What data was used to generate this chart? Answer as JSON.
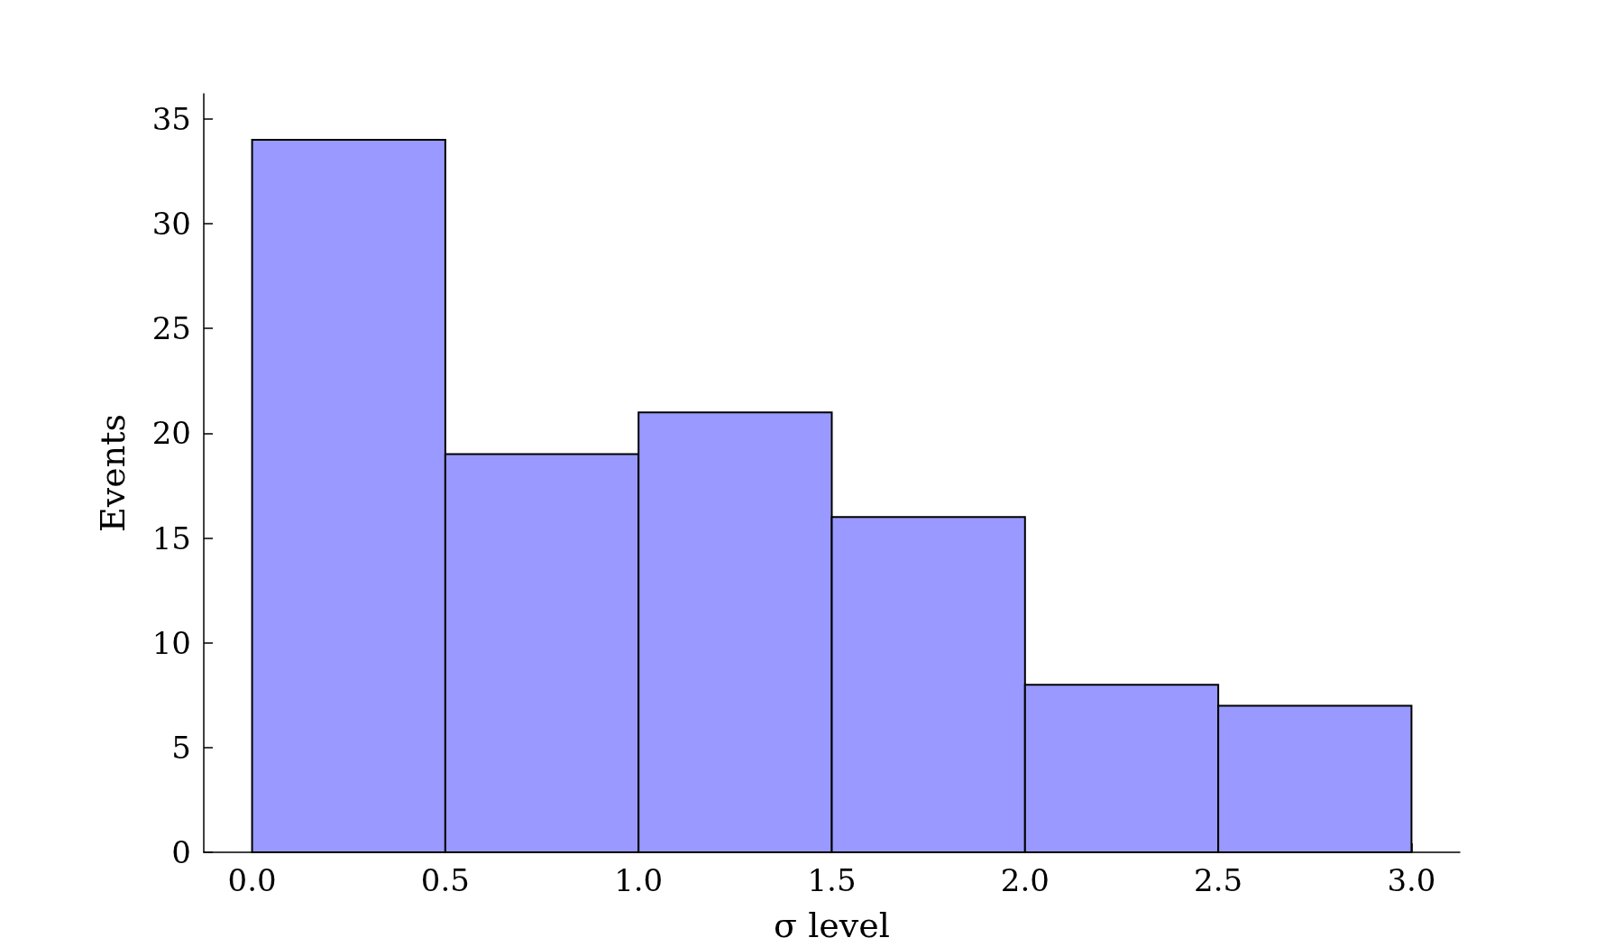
{
  "chart_data": {
    "type": "histogram",
    "xlabel": "σ level",
    "ylabel": "Events",
    "bins": [
      0,
      0.5,
      1,
      1.5,
      2,
      2.5,
      3
    ],
    "values": [
      34,
      19,
      21,
      16,
      8,
      7
    ],
    "color": "#9999ff",
    "xlim": [
      -0.125,
      3.125
    ],
    "xticks": [
      {
        "value": 0,
        "label": "0.0"
      },
      0.5,
      {
        "value": 1,
        "label": "1.0"
      },
      1.5,
      {
        "value": 2,
        "label": "2.0"
      },
      2.5,
      {
        "value": 3,
        "label": "3.0"
      }
    ],
    "ylim": [
      0,
      36.2
    ],
    "yticks": [
      0,
      5,
      10,
      15,
      20,
      25,
      30,
      35
    ],
    "grid": false
  }
}
